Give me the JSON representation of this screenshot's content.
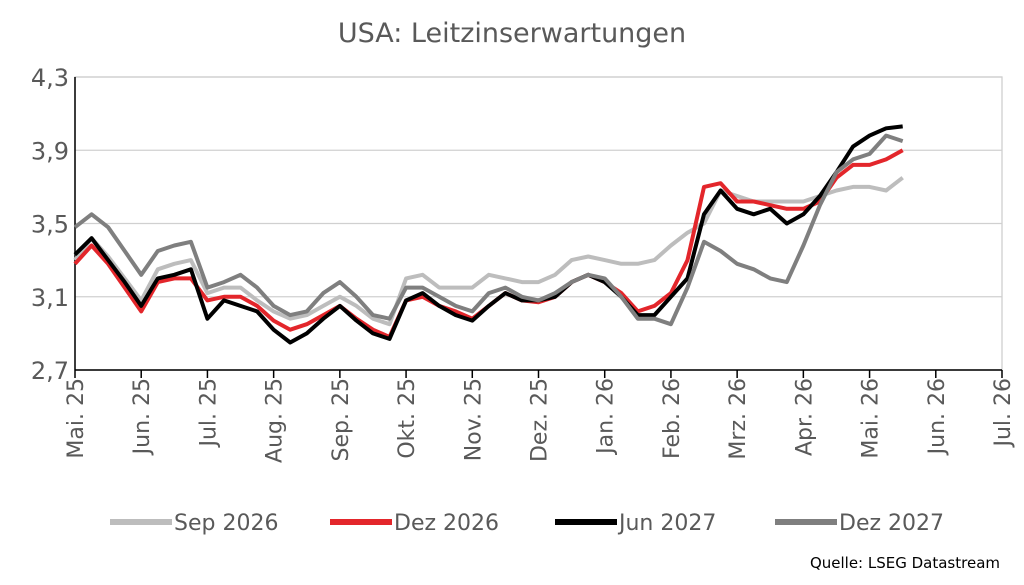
{
  "chart_data": {
    "type": "line",
    "title": "USA: Leitzinserwartungen",
    "source": "Quelle: LSEG Datastream",
    "categories": [
      "Mai. 25",
      null,
      null,
      null,
      "Jun. 25",
      null,
      null,
      null,
      "Jul. 25",
      null,
      null,
      null,
      "Aug. 25",
      null,
      null,
      null,
      "Sep. 25",
      null,
      null,
      null,
      "Okt. 25",
      null,
      null,
      null,
      "Nov. 25",
      null,
      null,
      null,
      "Dez. 25",
      null,
      null,
      null,
      "Jan. 26",
      null,
      null,
      null,
      "Feb. 26",
      null,
      null,
      null,
      "Mrz. 26",
      null,
      null,
      null,
      "Apr. 26",
      null,
      null,
      null,
      "Mai. 26",
      null,
      null,
      null,
      "Jun. 26",
      null,
      null,
      null,
      "Jul. 26"
    ],
    "ylim": [
      2.7,
      4.3
    ],
    "yticks": [
      {
        "value": 2.7,
        "label": "2,7"
      },
      {
        "value": 3.1,
        "label": "3,1"
      },
      {
        "value": 3.5,
        "label": "3,5"
      },
      {
        "value": 3.9,
        "label": "3,9"
      },
      {
        "value": 4.3,
        "label": "4,3"
      }
    ],
    "grid": true,
    "legend": "bottom",
    "series": [
      {
        "name": "Sep 2026",
        "color": "#bdbdbd",
        "values": [
          3.3,
          3.42,
          3.32,
          3.2,
          3.08,
          3.25,
          3.28,
          3.3,
          3.12,
          3.15,
          3.15,
          3.08,
          3.02,
          2.98,
          3.0,
          3.05,
          3.1,
          3.05,
          2.98,
          2.95,
          3.2,
          3.22,
          3.15,
          3.15,
          3.15,
          3.22,
          3.2,
          3.18,
          3.18,
          3.22,
          3.3,
          3.32,
          3.3,
          3.28,
          3.28,
          3.3,
          3.38,
          3.45,
          3.5,
          3.68,
          3.65,
          3.62,
          3.62,
          3.62,
          3.62,
          3.65,
          3.68,
          3.7,
          3.7,
          3.68,
          3.75,
          null,
          null,
          null,
          null,
          null,
          null
        ]
      },
      {
        "name": "Dez 2026",
        "color": "#e3262b",
        "values": [
          3.28,
          3.38,
          3.28,
          3.15,
          3.02,
          3.18,
          3.2,
          3.2,
          3.08,
          3.1,
          3.1,
          3.05,
          2.97,
          2.92,
          2.95,
          3.0,
          3.05,
          2.98,
          2.92,
          2.88,
          3.08,
          3.1,
          3.05,
          3.02,
          2.98,
          3.05,
          3.12,
          3.08,
          3.07,
          3.1,
          3.18,
          3.22,
          3.18,
          3.12,
          3.02,
          3.05,
          3.12,
          3.3,
          3.7,
          3.72,
          3.62,
          3.62,
          3.6,
          3.58,
          3.58,
          3.62,
          3.75,
          3.82,
          3.82,
          3.85,
          3.9,
          null,
          null,
          null,
          null,
          null,
          null
        ]
      },
      {
        "name": "Jun 2027",
        "color": "#000000",
        "values": [
          3.33,
          3.42,
          3.3,
          3.18,
          3.05,
          3.2,
          3.22,
          3.25,
          2.98,
          3.08,
          3.05,
          3.02,
          2.92,
          2.85,
          2.9,
          2.98,
          3.05,
          2.97,
          2.9,
          2.87,
          3.08,
          3.12,
          3.05,
          3.0,
          2.97,
          3.05,
          3.12,
          3.08,
          3.08,
          3.1,
          3.18,
          3.22,
          3.18,
          3.1,
          3.0,
          3.0,
          3.1,
          3.2,
          3.55,
          3.68,
          3.58,
          3.55,
          3.58,
          3.5,
          3.55,
          3.65,
          3.78,
          3.92,
          3.98,
          4.02,
          4.03,
          null,
          null,
          null,
          null,
          null,
          null
        ]
      },
      {
        "name": "Dez 2027",
        "color": "#7f7f7f",
        "values": [
          3.48,
          3.55,
          3.48,
          3.35,
          3.22,
          3.35,
          3.38,
          3.4,
          3.15,
          3.18,
          3.22,
          3.15,
          3.05,
          3.0,
          3.02,
          3.12,
          3.18,
          3.1,
          3.0,
          2.98,
          3.15,
          3.15,
          3.1,
          3.05,
          3.02,
          3.12,
          3.15,
          3.1,
          3.08,
          3.12,
          3.18,
          3.22,
          3.2,
          3.1,
          2.98,
          2.98,
          2.95,
          3.15,
          3.4,
          3.35,
          3.28,
          3.25,
          3.2,
          3.18,
          3.38,
          3.6,
          3.78,
          3.85,
          3.88,
          3.98,
          3.95,
          null,
          null,
          null,
          null,
          null,
          null
        ]
      }
    ]
  }
}
